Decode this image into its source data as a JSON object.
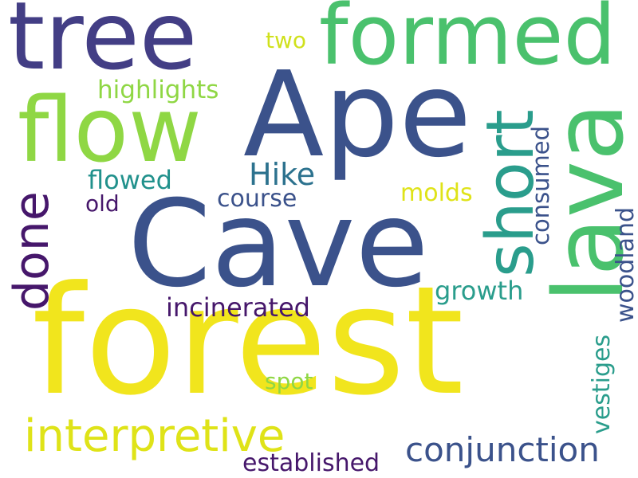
{
  "word_cloud": {
    "words": [
      {
        "text": "forest",
        "color": "#f1e51d"
      },
      {
        "text": "Cave",
        "color": "#3b528b"
      },
      {
        "text": "Ape",
        "color": "#3b528b"
      },
      {
        "text": "tree",
        "color": "#433e85"
      },
      {
        "text": "formed",
        "color": "#4ac16d"
      },
      {
        "text": "flow",
        "color": "#8fd744"
      },
      {
        "text": "lava",
        "color": "#4ac16d"
      },
      {
        "text": "short",
        "color": "#2a9d8c"
      },
      {
        "text": "done",
        "color": "#46176b"
      },
      {
        "text": "interpretive",
        "color": "#dfe318"
      },
      {
        "text": "conjunction",
        "color": "#3b528b"
      },
      {
        "text": "Hike",
        "color": "#2c728e"
      },
      {
        "text": "highlights",
        "color": "#8fd744"
      },
      {
        "text": "flowed",
        "color": "#21918c"
      },
      {
        "text": "old",
        "color": "#46176b"
      },
      {
        "text": "course",
        "color": "#3b528b"
      },
      {
        "text": "molds",
        "color": "#dfe318"
      },
      {
        "text": "two",
        "color": "#d0e11c"
      },
      {
        "text": "consumed",
        "color": "#3b528b"
      },
      {
        "text": "woodland",
        "color": "#3b528b"
      },
      {
        "text": "growth",
        "color": "#2a9d8c"
      },
      {
        "text": "incinerated",
        "color": "#46176b"
      },
      {
        "text": "vestiges",
        "color": "#2a9d8c"
      },
      {
        "text": "spot",
        "color": "#8fd744"
      },
      {
        "text": "established",
        "color": "#46176b"
      }
    ]
  }
}
